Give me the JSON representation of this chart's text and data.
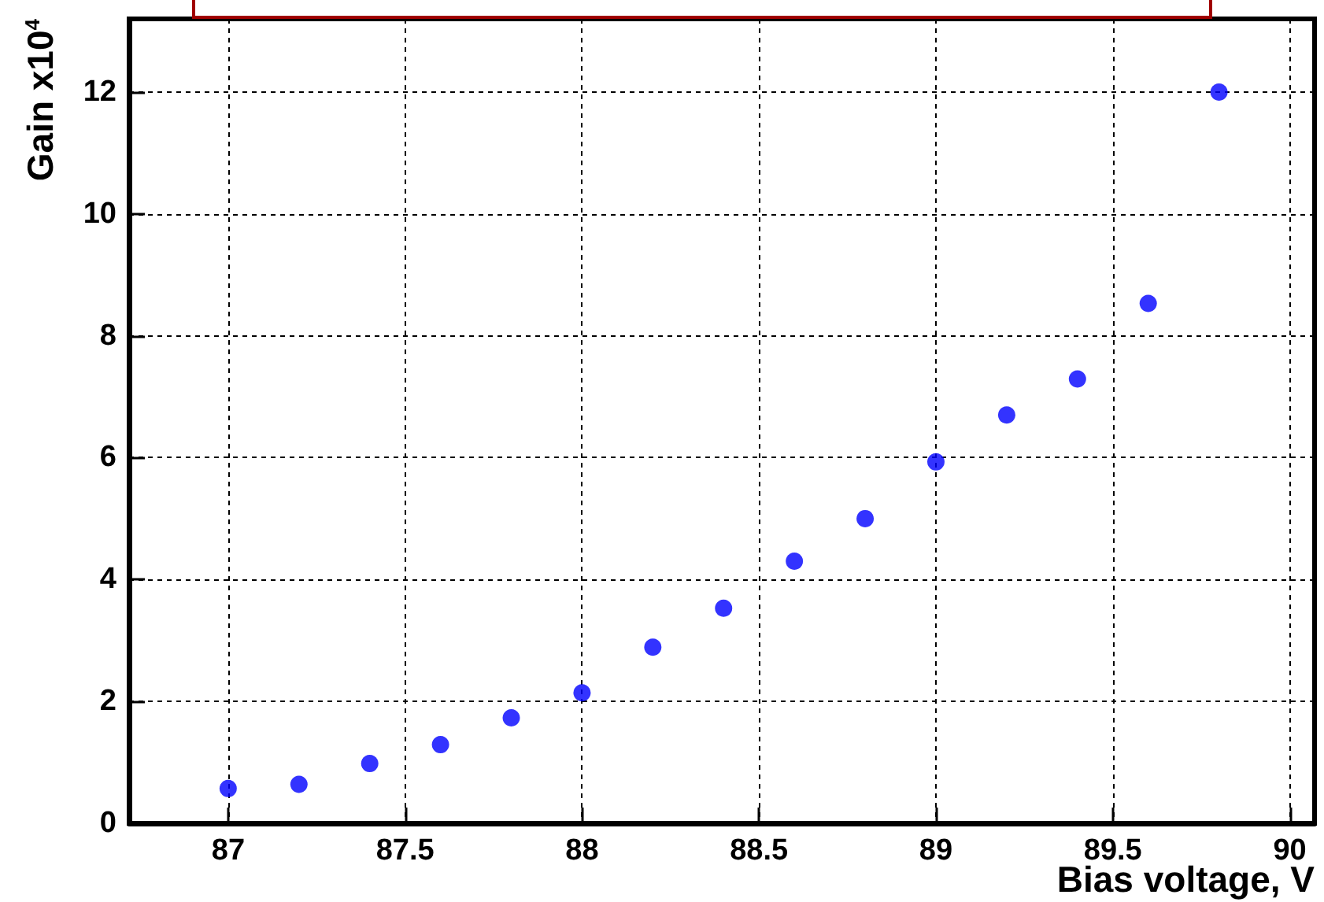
{
  "chart_data": {
    "type": "scatter",
    "xlabel": "Bias voltage, V",
    "ylabel": "Gain x10$^{4}$",
    "x": [
      87,
      87.2,
      87.4,
      87.6,
      87.8,
      88,
      88.2,
      88.4,
      88.6,
      88.8,
      89,
      89.2,
      89.4,
      89.6,
      89.8
    ],
    "series": [
      {
        "color": "#0000ff",
        "values": [
          0.57,
          0.64,
          0.98,
          1.29,
          1.73,
          2.14,
          2.89,
          3.53,
          4.3,
          5.0,
          5.93,
          6.7,
          7.29,
          8.53,
          12.0
        ]
      }
    ],
    "xlim": [
      86.72,
      90.07
    ],
    "ylim": [
      0,
      13.2
    ],
    "xticks": [
      87,
      87.5,
      88,
      88.5,
      89,
      89.5,
      90
    ],
    "yticks": [
      0,
      2,
      4,
      6,
      8,
      10,
      12
    ],
    "grid": true,
    "marker": "circle"
  }
}
